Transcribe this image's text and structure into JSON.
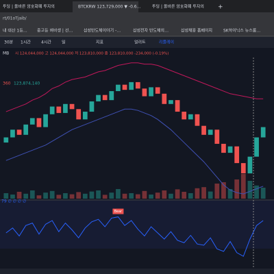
{
  "tabs": [
    "투딩 | 올바른 암호화폐 투자의",
    "BTCKRW 123,729,000 ▼ -0.6…",
    "투딩 | 올바른 암호화폐 투자의"
  ],
  "address": "rt/01oTjaib/",
  "bookmarks": [
    "내 대산 1등…",
    "중고등 벼바생 | 선…",
    "삼성반도체이야기 -…",
    "삼성전자 반도체의…",
    "삼성채용 홈페이지",
    "SK하이닉스 뉴스룸…"
  ],
  "toolbar": [
    "30분",
    "1시간",
    "4시간",
    "일",
    "지표",
    "얼러트",
    "리플레이"
  ],
  "ohlc": {
    "prefix": "MB",
    "text": "시 124,044,000 고 124,044,000 저 123,810,000 종 123,810,000 -234,000 (-0.19%)"
  },
  "band_label": {
    "period": "360",
    "value": "123,874,140"
  },
  "indicator_label": "79 ∅ ∅ ∅ ∅",
  "annotation": "Bear",
  "chart_data": {
    "type": "candlestick",
    "ylim": [
      116500000,
      127000000
    ],
    "open": [
      120600000,
      121000000,
      121600000,
      121200000,
      122000000,
      122500000,
      121800000,
      122800000,
      123400000,
      122900000,
      123600000,
      123200000,
      122400000,
      123000000,
      123800000,
      124300000,
      123900000,
      124600000,
      125100000,
      124700000,
      125300000,
      124800000,
      124200000,
      124900000,
      124400000,
      123600000,
      123900000,
      123000000,
      122400000,
      122800000,
      121900000,
      121200000,
      121600000,
      120500000,
      119800000,
      120300000,
      119000000,
      118200000,
      119500000,
      121000000
    ],
    "close": [
      121000000,
      121600000,
      121200000,
      122000000,
      122500000,
      121800000,
      122800000,
      123400000,
      122900000,
      123600000,
      123200000,
      122400000,
      123000000,
      123800000,
      124300000,
      123900000,
      124600000,
      125100000,
      124700000,
      125300000,
      124800000,
      124200000,
      124900000,
      124400000,
      123600000,
      123900000,
      123000000,
      122400000,
      122800000,
      121900000,
      121200000,
      121600000,
      120500000,
      119800000,
      120300000,
      119000000,
      118200000,
      119500000,
      121000000,
      121800000
    ],
    "upper": [
      123000000,
      123200000,
      123400000,
      123600000,
      123900000,
      124100000,
      124400000,
      124800000,
      125000000,
      125300000,
      125500000,
      125600000,
      125700000,
      125900000,
      126100000,
      126200000,
      126400000,
      126600000,
      126700000,
      126800000,
      126800000,
      126700000,
      126700000,
      126600000,
      126400000,
      126200000,
      126000000,
      125800000,
      125600000,
      125400000,
      125200000,
      125000000,
      124800000,
      124600000,
      124400000,
      124300000,
      124200000,
      124100000,
      124000000,
      124000000
    ],
    "lower": [
      119200000,
      119400000,
      119600000,
      119800000,
      120000000,
      120200000,
      120400000,
      120700000,
      121000000,
      121300000,
      121600000,
      121800000,
      122000000,
      122200000,
      122400000,
      122600000,
      122800000,
      123000000,
      123200000,
      123200000,
      123100000,
      122900000,
      122700000,
      122400000,
      122000000,
      121600000,
      121100000,
      120600000,
      120100000,
      119600000,
      119100000,
      118500000,
      117900000,
      117300000,
      116900000,
      116700000,
      116600000,
      116800000,
      117000000,
      117200000
    ],
    "volume_lim": [
      0,
      100
    ],
    "volumes": [
      20,
      15,
      25,
      18,
      30,
      12,
      22,
      28,
      14,
      20,
      16,
      24,
      18,
      26,
      30,
      14,
      22,
      35,
      18,
      20,
      16,
      28,
      15,
      22,
      30,
      18,
      34,
      25,
      20,
      38,
      42,
      26,
      55,
      60,
      35,
      70,
      90,
      65,
      48,
      40
    ],
    "indicator_lim": [
      0,
      100
    ],
    "indicator": [
      50,
      58,
      45,
      62,
      66,
      48,
      64,
      70,
      52,
      66,
      55,
      42,
      58,
      68,
      72,
      60,
      74,
      76,
      62,
      70,
      56,
      45,
      60,
      50,
      40,
      52,
      38,
      34,
      46,
      32,
      30,
      42,
      24,
      20,
      36,
      18,
      12,
      40,
      62,
      70
    ],
    "up_color": "#26a69a",
    "down_color": "#ef5350",
    "upper_color": "#c2185b",
    "lower_color": "#3f51b5",
    "indicator_color": "#2962ff"
  }
}
